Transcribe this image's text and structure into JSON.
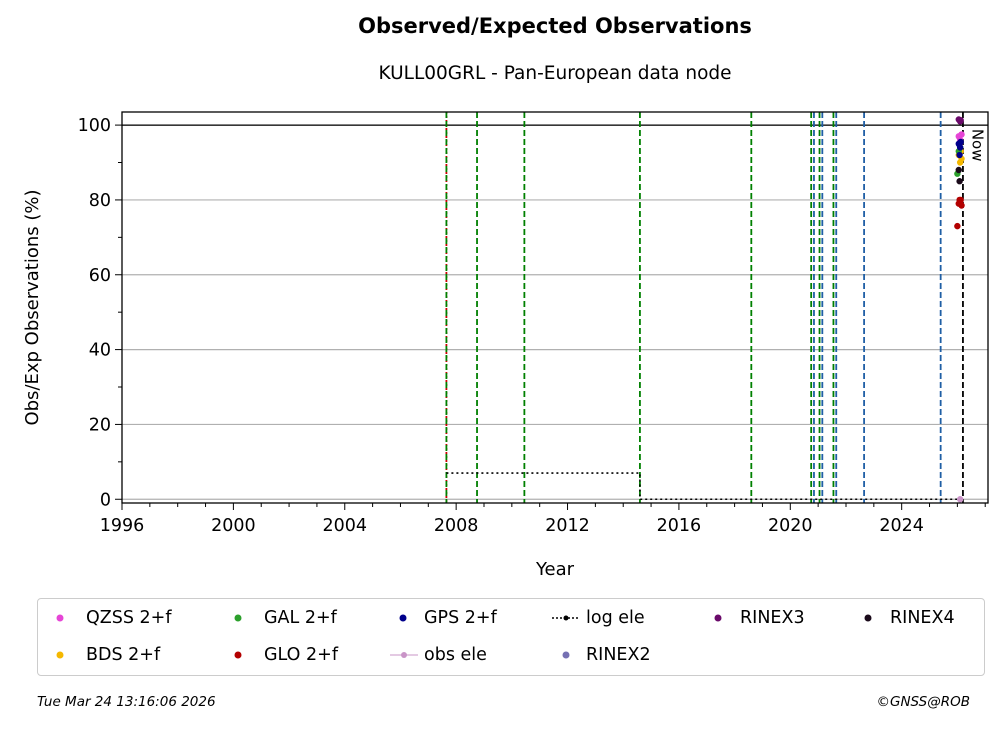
{
  "chart_data": {
    "type": "scatter",
    "title": "Observed/Expected Observations",
    "subtitle": "KULL00GRL - Pan-European data node",
    "xlabel": "Year",
    "ylabel": "Obs/Exp Observations (%)",
    "xlim": [
      1996,
      2027.1
    ],
    "ylim": [
      -1,
      103.5
    ],
    "x_ticks": [
      "1996",
      "2000",
      "2004",
      "2008",
      "2012",
      "2016",
      "2020",
      "2024"
    ],
    "y_ticks": [
      "0",
      "20",
      "40",
      "60",
      "80",
      "100"
    ],
    "grid": "y",
    "reference_line": 100,
    "now_label": "Now",
    "now_x": 2026.22,
    "vertical_events": [
      {
        "x": 2007.65,
        "color": "#cc0000"
      },
      {
        "x": 2007.65,
        "color": "#008000"
      },
      {
        "x": 2008.75,
        "color": "#008000"
      },
      {
        "x": 2010.45,
        "color": "#008000"
      },
      {
        "x": 2014.6,
        "color": "#008000"
      },
      {
        "x": 2018.6,
        "color": "#008000"
      },
      {
        "x": 2020.75,
        "color": "#008000"
      },
      {
        "x": 2020.85,
        "color": "#1f5fa5"
      },
      {
        "x": 2021.05,
        "color": "#008000"
      },
      {
        "x": 2021.15,
        "color": "#1f5fa5"
      },
      {
        "x": 2021.55,
        "color": "#008000"
      },
      {
        "x": 2021.65,
        "color": "#1f5fa5"
      },
      {
        "x": 2022.65,
        "color": "#1f5fa5"
      },
      {
        "x": 2025.4,
        "color": "#1f5fa5"
      },
      {
        "x": 2026.2,
        "color": "#000000"
      }
    ],
    "log_ele": [
      {
        "x": 2007.65,
        "y": 7
      },
      {
        "x": 2014.6,
        "y": 7
      },
      {
        "x": 2014.6,
        "y": 0
      },
      {
        "x": 2026.2,
        "y": 0
      }
    ],
    "series": [
      {
        "name": "QZSS 2+f",
        "color": "#e645d6",
        "points": [
          [
            2026.05,
            97
          ],
          [
            2026.1,
            96
          ],
          [
            2026.15,
            97.5
          ],
          [
            2026.08,
            95
          ]
        ]
      },
      {
        "name": "BDS 2+f",
        "color": "#f5b800",
        "points": [
          [
            2026.05,
            92
          ],
          [
            2026.1,
            90
          ],
          [
            2026.15,
            91
          ],
          [
            2026.12,
            93
          ]
        ]
      },
      {
        "name": "GAL 2+f",
        "color": "#2ca02c",
        "points": [
          [
            2026.0,
            87
          ],
          [
            2026.05,
            93
          ],
          [
            2026.1,
            94
          ]
        ]
      },
      {
        "name": "GLO 2+f",
        "color": "#b30000",
        "points": [
          [
            2026.0,
            73
          ],
          [
            2026.05,
            79
          ],
          [
            2026.08,
            80
          ],
          [
            2026.1,
            79.5
          ],
          [
            2026.12,
            80
          ],
          [
            2026.15,
            78.5
          ]
        ]
      },
      {
        "name": "GPS 2+f",
        "color": "#00008b",
        "points": [
          [
            2026.05,
            95
          ],
          [
            2026.1,
            94
          ],
          [
            2026.12,
            95.5
          ],
          [
            2026.08,
            92
          ]
        ]
      },
      {
        "name": "obs ele",
        "color": "#c994c7",
        "points": [
          [
            2026.1,
            0
          ]
        ]
      },
      {
        "name": "log ele",
        "color": "#000000",
        "points": []
      },
      {
        "name": "RINEX2",
        "color": "#7570b3",
        "points": []
      },
      {
        "name": "RINEX3",
        "color": "#6a0a6a",
        "points": [
          [
            2026.05,
            101.5
          ],
          [
            2026.1,
            101
          ],
          [
            2026.12,
            101.3
          ]
        ]
      },
      {
        "name": "RINEX4",
        "color": "#1a0a1a",
        "points": [
          [
            2026.05,
            88
          ],
          [
            2026.08,
            85
          ]
        ]
      }
    ]
  },
  "footer": {
    "timestamp": "Tue Mar 24 13:16:06 2026",
    "credit": "©GNSS@ROB"
  }
}
